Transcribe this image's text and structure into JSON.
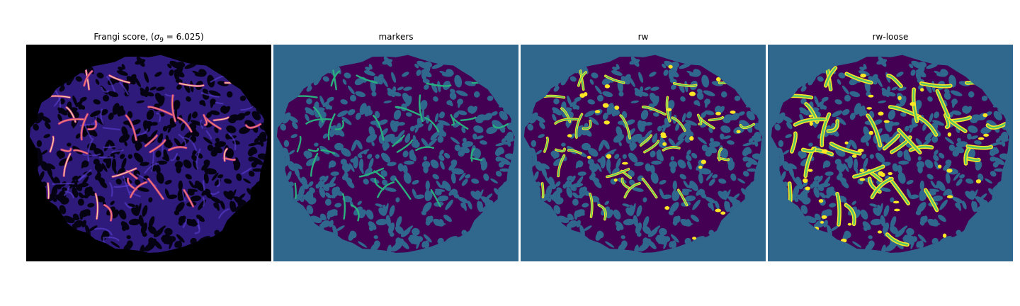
{
  "panels": [
    {
      "title_prefix": "Frangi score, (",
      "title_symbol": "σ",
      "title_subscript": "9",
      "title_suffix": " = 6.025)",
      "colormap": "magma",
      "background": "#000000",
      "tissue_color": "#2e1a7a",
      "vessel_color": "#f5a36d"
    },
    {
      "title": "markers",
      "colormap": "viridis",
      "background": "#30678d",
      "tissue_color": "#440154",
      "vessel_color": "#2ab07e"
    },
    {
      "title": "rw",
      "colormap": "viridis",
      "background": "#30678d",
      "tissue_color": "#440154",
      "vessel_color": "#fde725",
      "vessel_edge": "#5cc863"
    },
    {
      "title": "rw-loose",
      "colormap": "viridis",
      "background": "#30678d",
      "tissue_color": "#440154",
      "vessel_color": "#fde725",
      "vessel_edge": "#5cc863"
    }
  ]
}
